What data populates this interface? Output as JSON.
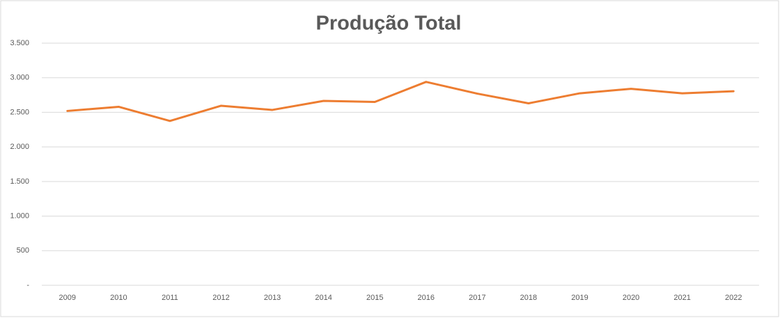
{
  "chart_data": {
    "type": "line",
    "title": "Produção Total",
    "categories": [
      "2009",
      "2010",
      "2011",
      "2012",
      "2013",
      "2014",
      "2015",
      "2016",
      "2017",
      "2018",
      "2019",
      "2020",
      "2021",
      "2022"
    ],
    "series": [
      {
        "name": "Produção Total",
        "color": "#ed7d31",
        "values": [
          2520,
          2580,
          2375,
          2595,
          2535,
          2665,
          2650,
          2940,
          2770,
          2630,
          2775,
          2840,
          2775,
          2805
        ]
      }
    ],
    "ylim": [
      0,
      3500
    ],
    "yticks": [
      {
        "value": 0,
        "label": "-"
      },
      500,
      {
        "value": 1000,
        "label": "1.000"
      },
      {
        "value": 1500,
        "label": "1.500"
      },
      {
        "value": 2000,
        "label": "2.000"
      },
      {
        "value": 2500,
        "label": "2.500"
      },
      {
        "value": 3000,
        "label": "3.000"
      },
      {
        "value": 3500,
        "label": "3.500"
      }
    ],
    "grid": true
  }
}
